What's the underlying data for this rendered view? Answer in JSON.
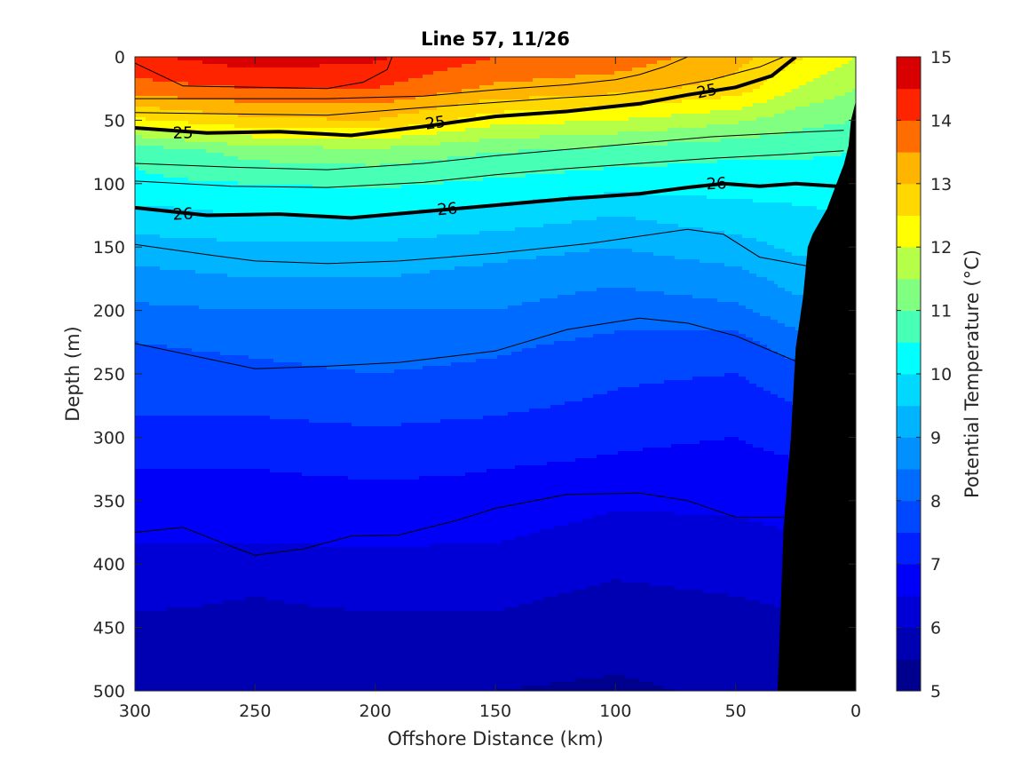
{
  "chart_data": {
    "type": "heatmap",
    "title": "Line 57, 11/26",
    "xlabel": "Offshore Distance (km)",
    "ylabel": "Depth (m)",
    "colorbar_label": "Potential Temperature (°C)",
    "xlim": [
      300,
      0
    ],
    "ylim": [
      500,
      0
    ],
    "x_reversed": true,
    "y_reversed": true,
    "xticks": [
      300,
      250,
      200,
      150,
      100,
      50,
      0
    ],
    "yticks": [
      0,
      50,
      100,
      150,
      200,
      250,
      300,
      350,
      400,
      450,
      500
    ],
    "colorbar_ticks": [
      5,
      6,
      7,
      8,
      9,
      10,
      11,
      12,
      13,
      14,
      15
    ],
    "colorbar_levels": [
      5,
      5.5,
      6,
      6.5,
      7,
      7.5,
      8,
      8.5,
      9,
      9.5,
      10,
      10.5,
      11,
      11.5,
      12,
      12.5,
      13,
      13.5,
      14,
      14.5,
      15
    ],
    "colormap": [
      "#00008f",
      "#0000b3",
      "#0000d6",
      "#0000f9",
      "#0020ff",
      "#0048ff",
      "#006cff",
      "#0090ff",
      "#00b4ff",
      "#00d8ff",
      "#00ffff",
      "#48ffb6",
      "#80ff80",
      "#b6ff48",
      "#ffff00",
      "#ffd800",
      "#ffb400",
      "#ff6c00",
      "#ff2400",
      "#d80000",
      "#a00000"
    ],
    "bathymetry_color": "#000000",
    "temperature_profiles": {
      "depth": [
        0,
        25,
        50,
        75,
        100,
        125,
        150,
        175,
        200,
        225,
        250,
        275,
        300,
        325,
        350,
        375,
        400,
        425,
        450,
        475,
        500
      ],
      "stations": [
        {
          "x": 300,
          "temp": [
            14.4,
            13.8,
            12.4,
            10.6,
            10.4,
            9.8,
            9.3,
            8.8,
            8.4,
            8.0,
            7.8,
            7.6,
            7.3,
            7.0,
            6.8,
            6.6,
            6.3,
            6.1,
            5.9,
            5.7,
            5.6
          ]
        },
        {
          "x": 250,
          "temp": [
            14.8,
            14.0,
            12.9,
            11.2,
            10.5,
            10.0,
            9.4,
            9.0,
            8.5,
            8.1,
            7.9,
            7.6,
            7.3,
            7.0,
            6.8,
            6.6,
            6.3,
            6.0,
            5.9,
            5.7,
            5.6
          ]
        },
        {
          "x": 200,
          "temp": [
            14.6,
            14.0,
            13.0,
            11.3,
            10.6,
            10.0,
            9.4,
            9.0,
            8.5,
            8.2,
            8.0,
            7.7,
            7.4,
            7.1,
            6.8,
            6.6,
            6.4,
            6.1,
            5.9,
            5.7,
            5.6
          ]
        },
        {
          "x": 150,
          "temp": [
            14.0,
            13.4,
            12.2,
            11.0,
            10.4,
            9.8,
            9.2,
            8.8,
            8.5,
            8.1,
            7.9,
            7.6,
            7.3,
            7.0,
            6.9,
            6.6,
            6.3,
            6.1,
            5.9,
            5.7,
            5.5
          ]
        },
        {
          "x": 100,
          "temp": [
            13.8,
            13.2,
            12.0,
            10.8,
            10.2,
            9.5,
            9.0,
            8.6,
            8.2,
            7.9,
            7.6,
            7.4,
            7.1,
            6.9,
            6.6,
            6.3,
            6.1,
            5.9,
            5.7,
            5.6,
            5.4
          ]
        },
        {
          "x": 50,
          "temp": [
            13.2,
            12.8,
            11.6,
            10.6,
            10.2,
            9.8,
            9.3,
            8.8,
            8.4,
            7.8,
            7.5,
            7.2,
            7.0,
            6.8,
            6.6,
            6.4,
            6.2,
            6.0,
            5.8,
            5.7,
            5.6
          ]
        },
        {
          "x": 25,
          "temp": [
            12.6,
            12.0,
            11.2,
            10.6,
            10.2,
            9.9,
            9.6,
            9.2,
            8.8,
            8.3,
            7.8,
            7.5,
            7.2,
            6.9,
            6.7,
            6.5,
            6.3,
            6.1,
            5.9,
            5.8,
            5.7
          ]
        },
        {
          "x": 0,
          "temp": [
            12.0,
            11.5,
            11.0,
            10.5,
            10.2,
            10.0,
            9.7,
            9.3,
            9.0,
            8.6,
            8.2,
            7.8,
            7.5,
            7.2,
            7.0,
            6.8,
            6.6,
            6.3,
            6.1,
            6.0,
            5.9
          ]
        }
      ]
    },
    "density_contours": {
      "labels": [
        "25",
        "25",
        "25",
        "26",
        "26",
        "26"
      ],
      "labeled_lines": [
        {
          "value": "25",
          "points": [
            [
              300,
              56
            ],
            [
              270,
              60
            ],
            [
              240,
              59
            ],
            [
              210,
              62
            ],
            [
              180,
              55
            ],
            [
              150,
              47
            ],
            [
              120,
              43
            ],
            [
              90,
              37
            ],
            [
              70,
              30
            ],
            [
              50,
              24
            ],
            [
              35,
              15
            ],
            [
              25,
              0
            ]
          ]
        },
        {
          "value": "26",
          "points": [
            [
              300,
              119
            ],
            [
              270,
              125
            ],
            [
              240,
              124
            ],
            [
              210,
              127
            ],
            [
              180,
              122
            ],
            [
              150,
              117
            ],
            [
              120,
              112
            ],
            [
              90,
              108
            ],
            [
              70,
              103
            ],
            [
              55,
              100
            ],
            [
              40,
              102
            ],
            [
              25,
              100
            ],
            [
              8,
              102
            ]
          ]
        }
      ],
      "thin_lines": [
        {
          "points": [
            [
              300,
              5
            ],
            [
              280,
              23
            ],
            [
              250,
              24
            ],
            [
              220,
              25
            ],
            [
              205,
              20
            ],
            [
              200,
              15
            ],
            [
              195,
              10
            ],
            [
              193,
              0
            ]
          ]
        },
        {
          "points": [
            [
              300,
              33
            ],
            [
              260,
              33
            ],
            [
              220,
              33
            ],
            [
              180,
              31
            ],
            [
              150,
              26
            ],
            [
              120,
              22
            ],
            [
              100,
              18
            ],
            [
              90,
              14
            ],
            [
              80,
              8
            ],
            [
              70,
              0
            ]
          ]
        },
        {
          "points": [
            [
              300,
              44
            ],
            [
              260,
              45
            ],
            [
              220,
              46
            ],
            [
              180,
              40
            ],
            [
              150,
              36
            ],
            [
              120,
              32
            ],
            [
              100,
              30
            ],
            [
              80,
              25
            ],
            [
              60,
              18
            ],
            [
              40,
              8
            ],
            [
              30,
              0
            ]
          ]
        },
        {
          "points": [
            [
              300,
              84
            ],
            [
              260,
              87
            ],
            [
              220,
              89
            ],
            [
              180,
              84
            ],
            [
              150,
              78
            ],
            [
              120,
              73
            ],
            [
              90,
              68
            ],
            [
              60,
              63
            ],
            [
              30,
              60
            ],
            [
              5,
              58
            ]
          ]
        },
        {
          "points": [
            [
              300,
              98
            ],
            [
              260,
              102
            ],
            [
              220,
              103
            ],
            [
              180,
              99
            ],
            [
              150,
              93
            ],
            [
              120,
              88
            ],
            [
              90,
              84
            ],
            [
              60,
              80
            ],
            [
              30,
              77
            ],
            [
              5,
              74
            ]
          ]
        },
        {
          "points": [
            [
              300,
              148
            ],
            [
              270,
              156
            ],
            [
              250,
              161
            ],
            [
              220,
              163
            ],
            [
              190,
              161
            ],
            [
              150,
              155
            ],
            [
              110,
              147
            ],
            [
              70,
              136
            ],
            [
              55,
              140
            ],
            [
              40,
              158
            ],
            [
              20,
              165
            ]
          ]
        },
        {
          "points": [
            [
              300,
              226
            ],
            [
              270,
              238
            ],
            [
              250,
              246
            ],
            [
              220,
              244
            ],
            [
              190,
              241
            ],
            [
              150,
              232
            ],
            [
              120,
              215
            ],
            [
              90,
              206
            ],
            [
              70,
              210
            ],
            [
              50,
              220
            ],
            [
              25,
              240
            ]
          ]
        },
        {
          "points": [
            [
              300,
              375
            ],
            [
              280,
              371
            ],
            [
              260,
              386
            ],
            [
              250,
              393
            ],
            [
              230,
              388
            ],
            [
              210,
              378
            ],
            [
              190,
              377
            ],
            [
              165,
              365
            ],
            [
              150,
              356
            ],
            [
              120,
              345
            ],
            [
              90,
              344
            ],
            [
              70,
              350
            ],
            [
              50,
              363
            ],
            [
              30,
              363
            ]
          ]
        }
      ]
    },
    "bathymetry": [
      [
        32.5,
        500
      ],
      [
        30,
        370
      ],
      [
        27,
        300
      ],
      [
        25,
        230
      ],
      [
        22,
        190
      ],
      [
        20,
        150
      ],
      [
        18,
        140
      ],
      [
        12,
        120
      ],
      [
        8,
        100
      ],
      [
        5,
        85
      ],
      [
        3,
        70
      ],
      [
        2,
        50
      ],
      [
        0,
        35
      ],
      [
        0,
        500
      ]
    ]
  }
}
